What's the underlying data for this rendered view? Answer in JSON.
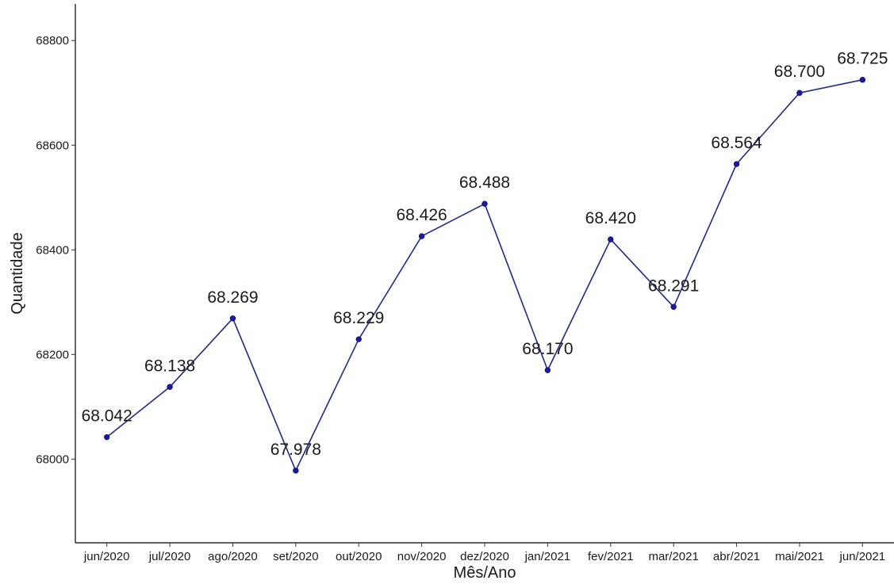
{
  "chart_data": {
    "type": "line",
    "xlabel": "Mês/Ano",
    "ylabel": "Quantidade",
    "categories": [
      "jun/2020",
      "jul/2020",
      "ago/2020",
      "set/2020",
      "out/2020",
      "nov/2020",
      "dez/2020",
      "jan/2021",
      "fev/2021",
      "mar/2021",
      "abr/2021",
      "mai/2021",
      "jun/2021"
    ],
    "series": [
      {
        "values": [
          68042,
          68138,
          68269,
          67978,
          68229,
          68426,
          68488,
          68170,
          68420,
          68291,
          68564,
          68700,
          68725
        ],
        "labels": [
          "68.042",
          "68.138",
          "68.269",
          "67.978",
          "68.229",
          "68.426",
          "68.488",
          "68.170",
          "68.420",
          "68.291",
          "68.564",
          "68.700",
          "68.725"
        ]
      }
    ],
    "yticks": [
      68000,
      68200,
      68400,
      68600,
      68800
    ],
    "ylim": [
      67840,
      68870
    ],
    "grid": false,
    "colors": {
      "line": "#1f2a8a",
      "point": "#1a1aa6",
      "axis": "#000000"
    }
  }
}
